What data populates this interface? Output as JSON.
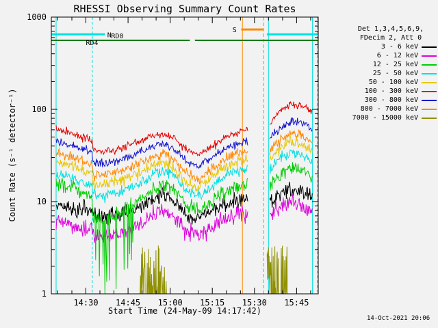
{
  "chart_data": {
    "type": "line",
    "title": "RHESSI Observing Summary Count Rates",
    "xlabel": "Start Time (24-May-09 14:17:42)",
    "ylabel": "Count Rate (s⁻¹ detector⁻¹)",
    "y_scale": "log",
    "ylim": [
      1,
      1000
    ],
    "x_range": [
      17.7,
      112.7
    ],
    "x_unit": "minutes after 14:00 on 24-May-09",
    "x_minor_step": 5,
    "x_ticks": [
      {
        "t": 30,
        "label": "14:30"
      },
      {
        "t": 45,
        "label": "14:45"
      },
      {
        "t": 60,
        "label": "15:00"
      },
      {
        "t": 75,
        "label": "15:15"
      },
      {
        "t": 90,
        "label": "15:30"
      },
      {
        "t": 105,
        "label": "15:45"
      }
    ],
    "y_ticks": [
      {
        "v": 1,
        "label": "1"
      },
      {
        "v": 10,
        "label": "10"
      },
      {
        "v": 100,
        "label": "100"
      },
      {
        "v": 1000,
        "label": "1000"
      }
    ],
    "segments": [
      [
        19.4,
        87.6
      ],
      [
        95.4,
        110.6
      ]
    ],
    "legend_header": [
      "Det 1,3,4,5,6,9,",
      "FDecim 2, Att 0"
    ],
    "colors": {
      "background": "#F2F2F2",
      "axis": "#000000"
    },
    "series": [
      {
        "name": "3 - 6 keV",
        "color": "#000000",
        "noise": 0.1,
        "points": [
          [
            19.4,
            9
          ],
          [
            24,
            8.6
          ],
          [
            30,
            8
          ],
          [
            32.2,
            7.8
          ],
          [
            32.5,
            7
          ],
          [
            36,
            6.8
          ],
          [
            42,
            7.2
          ],
          [
            48,
            8.5
          ],
          [
            54,
            11
          ],
          [
            58,
            12
          ],
          [
            62,
            9.5
          ],
          [
            66,
            7
          ],
          [
            70,
            6.3
          ],
          [
            74,
            7.5
          ],
          [
            80,
            9.5
          ],
          [
            85,
            10.5
          ],
          [
            87.6,
            11
          ],
          [
            95.4,
            10
          ],
          [
            99,
            12
          ],
          [
            103,
            13.5
          ],
          [
            106,
            13
          ],
          [
            109,
            11.8
          ],
          [
            110.6,
            11
          ]
        ]
      },
      {
        "name": "6 - 12 keV",
        "color": "#DD00DD",
        "noise": 0.11,
        "points": [
          [
            19.4,
            6
          ],
          [
            24,
            5.6
          ],
          [
            30,
            5
          ],
          [
            32.2,
            4.8
          ],
          [
            32.5,
            4.2
          ],
          [
            36,
            4.1
          ],
          [
            42,
            4.4
          ],
          [
            48,
            5.4
          ],
          [
            54,
            7.2
          ],
          [
            58,
            8
          ],
          [
            62,
            6.4
          ],
          [
            66,
            4.8
          ],
          [
            70,
            4.3
          ],
          [
            74,
            5
          ],
          [
            80,
            6.6
          ],
          [
            85,
            7.3
          ],
          [
            87.6,
            7.5
          ],
          [
            95.4,
            7
          ],
          [
            99,
            8.5
          ],
          [
            103,
            9.6
          ],
          [
            106,
            9.3
          ],
          [
            109,
            8.4
          ],
          [
            110.6,
            7.9
          ]
        ]
      },
      {
        "name": "12 - 25 keV",
        "color": "#00CC00",
        "noise": 0.09,
        "spiky": [
          32.6,
          47.5
        ],
        "points": [
          [
            19.4,
            16
          ],
          [
            24,
            14.5
          ],
          [
            30,
            12
          ],
          [
            32.2,
            11
          ],
          [
            32.5,
            7
          ],
          [
            36,
            6.5
          ],
          [
            42,
            7.5
          ],
          [
            48,
            10
          ],
          [
            54,
            14
          ],
          [
            58,
            16
          ],
          [
            62,
            12.5
          ],
          [
            66,
            9
          ],
          [
            70,
            7.5
          ],
          [
            74,
            9.5
          ],
          [
            80,
            13
          ],
          [
            85,
            15
          ],
          [
            87.6,
            16
          ],
          [
            95.4,
            15
          ],
          [
            99,
            19
          ],
          [
            103,
            23
          ],
          [
            106,
            22
          ],
          [
            109,
            19.5
          ],
          [
            110.6,
            18
          ]
        ]
      },
      {
        "name": "25 - 50 keV",
        "color": "#00E0E0",
        "noise": 0.065,
        "points": [
          [
            19.4,
            20
          ],
          [
            24,
            18.5
          ],
          [
            30,
            16
          ],
          [
            32.2,
            15
          ],
          [
            32.5,
            12
          ],
          [
            36,
            11.5
          ],
          [
            42,
            12.5
          ],
          [
            48,
            15
          ],
          [
            54,
            20
          ],
          [
            58,
            22
          ],
          [
            62,
            18
          ],
          [
            66,
            13
          ],
          [
            70,
            11.5
          ],
          [
            74,
            14
          ],
          [
            80,
            19
          ],
          [
            85,
            22
          ],
          [
            87.6,
            23
          ],
          [
            95.4,
            23
          ],
          [
            99,
            29
          ],
          [
            103,
            34
          ],
          [
            106,
            33
          ],
          [
            109,
            29
          ],
          [
            110.6,
            27
          ]
        ]
      },
      {
        "name": "50 - 100 keV",
        "color": "#E8C800",
        "noise": 0.075,
        "points": [
          [
            19.4,
            27
          ],
          [
            24,
            25
          ],
          [
            30,
            21
          ],
          [
            32.2,
            20
          ],
          [
            32.5,
            16
          ],
          [
            36,
            15
          ],
          [
            42,
            16.5
          ],
          [
            48,
            20
          ],
          [
            54,
            25
          ],
          [
            58,
            27
          ],
          [
            62,
            22
          ],
          [
            66,
            16
          ],
          [
            70,
            14
          ],
          [
            74,
            18
          ],
          [
            80,
            24
          ],
          [
            85,
            27
          ],
          [
            87.6,
            28
          ],
          [
            95.4,
            29
          ],
          [
            99,
            37
          ],
          [
            103,
            44
          ],
          [
            106,
            43
          ],
          [
            109,
            38
          ],
          [
            110.6,
            35
          ]
        ]
      },
      {
        "name": "100 - 300 keV",
        "color": "#E60000",
        "noise": 0.045,
        "points": [
          [
            19.4,
            62
          ],
          [
            24,
            55
          ],
          [
            30,
            48
          ],
          [
            32.2,
            46
          ],
          [
            32.5,
            36
          ],
          [
            36,
            34
          ],
          [
            42,
            37
          ],
          [
            48,
            44
          ],
          [
            54,
            52
          ],
          [
            58,
            54
          ],
          [
            62,
            46
          ],
          [
            66,
            36
          ],
          [
            70,
            32
          ],
          [
            74,
            38
          ],
          [
            80,
            50
          ],
          [
            85,
            58
          ],
          [
            87.6,
            60
          ],
          [
            95.4,
            68
          ],
          [
            99,
            95
          ],
          [
            103,
            113
          ],
          [
            106,
            112
          ],
          [
            109,
            100
          ],
          [
            110.6,
            92
          ]
        ]
      },
      {
        "name": "300 - 800 keV",
        "color": "#1414CC",
        "noise": 0.05,
        "points": [
          [
            19.4,
            45
          ],
          [
            24,
            41
          ],
          [
            30,
            36
          ],
          [
            32.2,
            34
          ],
          [
            32.5,
            27
          ],
          [
            36,
            25.5
          ],
          [
            42,
            28
          ],
          [
            48,
            33
          ],
          [
            54,
            40
          ],
          [
            58,
            42
          ],
          [
            62,
            35
          ],
          [
            66,
            27
          ],
          [
            70,
            24
          ],
          [
            74,
            29
          ],
          [
            80,
            38
          ],
          [
            85,
            43
          ],
          [
            87.6,
            45
          ],
          [
            95.4,
            48
          ],
          [
            99,
            62
          ],
          [
            103,
            74
          ],
          [
            106,
            73
          ],
          [
            109,
            65
          ],
          [
            110.6,
            60
          ]
        ]
      },
      {
        "name": "800 - 7000 keV",
        "color": "#FF8800",
        "noise": 0.06,
        "points": [
          [
            19.4,
            34
          ],
          [
            24,
            31
          ],
          [
            30,
            27
          ],
          [
            32.2,
            26
          ],
          [
            32.5,
            20
          ],
          [
            36,
            19
          ],
          [
            42,
            21
          ],
          [
            48,
            25
          ],
          [
            54,
            31
          ],
          [
            58,
            33
          ],
          [
            62,
            27
          ],
          [
            66,
            20
          ],
          [
            70,
            17
          ],
          [
            74,
            22
          ],
          [
            80,
            30
          ],
          [
            85,
            34
          ],
          [
            87.6,
            35
          ],
          [
            95.4,
            36
          ],
          [
            99,
            46
          ],
          [
            103,
            55
          ],
          [
            106,
            54
          ],
          [
            109,
            47
          ],
          [
            110.6,
            43
          ]
        ]
      },
      {
        "name": "7000 - 15000 keV",
        "color": "#8F8F00",
        "noise": 0.0,
        "windows": [
          [
            49.3,
            58.8
          ],
          [
            94.5,
            101.8
          ]
        ],
        "max": 3.4,
        "points": [
          [
            19.4,
            1
          ],
          [
            110.6,
            1
          ]
        ]
      }
    ],
    "vlines": [
      {
        "t": 19.4,
        "color": "#00E0E0",
        "dash": ""
      },
      {
        "t": 32.3,
        "color": "#00E0E0",
        "dash": "4,3"
      },
      {
        "t": 85.7,
        "color": "#FF8800",
        "dash": ""
      },
      {
        "t": 93.3,
        "color": "#FF8800",
        "dash": "5,3"
      },
      {
        "t": 95.0,
        "color": "#00E0E0",
        "dash": ""
      },
      {
        "t": 110.6,
        "color": "#00E0E0",
        "dash": ""
      },
      {
        "t": 112.4,
        "color": "#00E0E0",
        "dash": "4,3"
      }
    ],
    "flags": {
      "night": {
        "label": "N",
        "label_t": 37.6,
        "color": "#00E0E0",
        "value": 650,
        "lw": 3,
        "bars": [
          [
            17.7,
            36.8
          ],
          [
            94.4,
            112.7
          ]
        ]
      },
      "decimation": {
        "color": "#157A15",
        "value": 560,
        "lw": 2,
        "bars": [
          [
            17.7,
            67.0
          ],
          [
            68.8,
            112.7
          ]
        ],
        "labels": [
          {
            "text": "RD4",
            "t": 30.0,
            "dy": 7
          },
          {
            "text": "RD0",
            "t": 39.0,
            "dy": -3
          }
        ]
      },
      "saa": {
        "label": "S",
        "label_t": 82.2,
        "color": "#FF8800",
        "value": 735,
        "lw": 3,
        "bars": [
          [
            85.3,
            93.1
          ]
        ]
      }
    }
  },
  "footer": {
    "timestamp": "14-Oct-2021 20:06"
  }
}
